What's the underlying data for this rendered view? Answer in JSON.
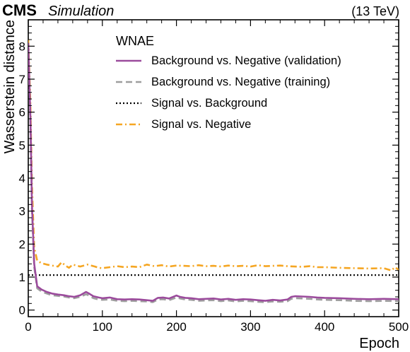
{
  "header": {
    "experiment": "CMS",
    "tag": "Simulation",
    "energy": "(13 TeV)"
  },
  "chart_data": {
    "type": "line",
    "title": "",
    "xlabel": "Epoch",
    "ylabel": "Wasserstein distance",
    "xlim": [
      0,
      500
    ],
    "ylim": [
      -0.2,
      8.8
    ],
    "xticks": [
      0,
      100,
      200,
      300,
      400,
      500
    ],
    "yticks": [
      0,
      1,
      2,
      3,
      4,
      5,
      6,
      7,
      8
    ],
    "grid": false,
    "legend": {
      "title": "WNAE",
      "placement": "top-right"
    },
    "series": [
      {
        "name": "Background vs. Negative (validation)",
        "color": "#9b4b9c",
        "style": "solid",
        "x": [
          0,
          3,
          5,
          8,
          12,
          18,
          25,
          32,
          40,
          48,
          55,
          62,
          70,
          78,
          82,
          88,
          95,
          100,
          110,
          120,
          130,
          140,
          150,
          160,
          168,
          175,
          182,
          190,
          200,
          205,
          212,
          220,
          230,
          240,
          250,
          260,
          270,
          280,
          290,
          300,
          310,
          320,
          330,
          340,
          350,
          355,
          360,
          370,
          380,
          390,
          400,
          420,
          440,
          460,
          480,
          500
        ],
        "y": [
          8.1,
          5.8,
          3.2,
          1.4,
          0.72,
          0.62,
          0.55,
          0.5,
          0.47,
          0.45,
          0.42,
          0.4,
          0.45,
          0.55,
          0.5,
          0.42,
          0.38,
          0.36,
          0.38,
          0.33,
          0.32,
          0.33,
          0.32,
          0.3,
          0.28,
          0.37,
          0.38,
          0.35,
          0.44,
          0.4,
          0.37,
          0.36,
          0.33,
          0.34,
          0.35,
          0.32,
          0.34,
          0.31,
          0.33,
          0.32,
          0.3,
          0.28,
          0.31,
          0.29,
          0.32,
          0.4,
          0.42,
          0.41,
          0.4,
          0.38,
          0.37,
          0.36,
          0.34,
          0.33,
          0.34,
          0.33
        ]
      },
      {
        "name": "Background vs. Negative (training)",
        "color": "#9e9e9e",
        "style": "dashed",
        "x": [
          0,
          3,
          5,
          8,
          12,
          18,
          25,
          32,
          40,
          48,
          55,
          62,
          70,
          78,
          82,
          88,
          95,
          100,
          110,
          120,
          130,
          140,
          150,
          160,
          168,
          175,
          182,
          190,
          200,
          205,
          212,
          220,
          230,
          240,
          250,
          260,
          270,
          280,
          290,
          300,
          310,
          320,
          330,
          340,
          350,
          355,
          360,
          370,
          380,
          390,
          400,
          420,
          440,
          460,
          480,
          500
        ],
        "y": [
          7.9,
          5.6,
          3.0,
          1.3,
          0.66,
          0.56,
          0.5,
          0.45,
          0.43,
          0.41,
          0.38,
          0.36,
          0.4,
          0.48,
          0.44,
          0.36,
          0.32,
          0.31,
          0.32,
          0.28,
          0.27,
          0.28,
          0.27,
          0.26,
          0.24,
          0.32,
          0.33,
          0.3,
          0.38,
          0.35,
          0.32,
          0.31,
          0.28,
          0.29,
          0.3,
          0.27,
          0.29,
          0.26,
          0.28,
          0.27,
          0.25,
          0.24,
          0.26,
          0.25,
          0.27,
          0.34,
          0.36,
          0.35,
          0.34,
          0.32,
          0.31,
          0.3,
          0.28,
          0.27,
          0.28,
          0.27
        ]
      },
      {
        "name": "Signal vs. Background",
        "color": "#000000",
        "style": "dotted",
        "x": [
          0,
          500
        ],
        "y": [
          1.06,
          1.06
        ]
      },
      {
        "name": "Signal vs. Negative",
        "color": "#f5a623",
        "style": "dashdot",
        "x": [
          0,
          3,
          5,
          8,
          12,
          18,
          25,
          32,
          40,
          45,
          50,
          55,
          60,
          70,
          80,
          90,
          95,
          100,
          110,
          120,
          130,
          140,
          150,
          160,
          170,
          180,
          190,
          200,
          210,
          220,
          230,
          240,
          250,
          260,
          270,
          280,
          290,
          300,
          310,
          320,
          330,
          340,
          350,
          360,
          370,
          380,
          390,
          400,
          420,
          440,
          460,
          480,
          490,
          495,
          500
        ],
        "y": [
          8.2,
          6.2,
          3.8,
          1.9,
          1.5,
          1.42,
          1.38,
          1.35,
          1.32,
          1.45,
          1.35,
          1.28,
          1.38,
          1.32,
          1.38,
          1.32,
          1.28,
          1.27,
          1.3,
          1.33,
          1.3,
          1.32,
          1.3,
          1.38,
          1.33,
          1.36,
          1.32,
          1.35,
          1.34,
          1.33,
          1.36,
          1.33,
          1.34,
          1.32,
          1.35,
          1.33,
          1.34,
          1.32,
          1.36,
          1.33,
          1.34,
          1.35,
          1.33,
          1.32,
          1.31,
          1.33,
          1.3,
          1.3,
          1.28,
          1.27,
          1.26,
          1.27,
          1.2,
          1.3,
          1.22
        ]
      }
    ]
  }
}
